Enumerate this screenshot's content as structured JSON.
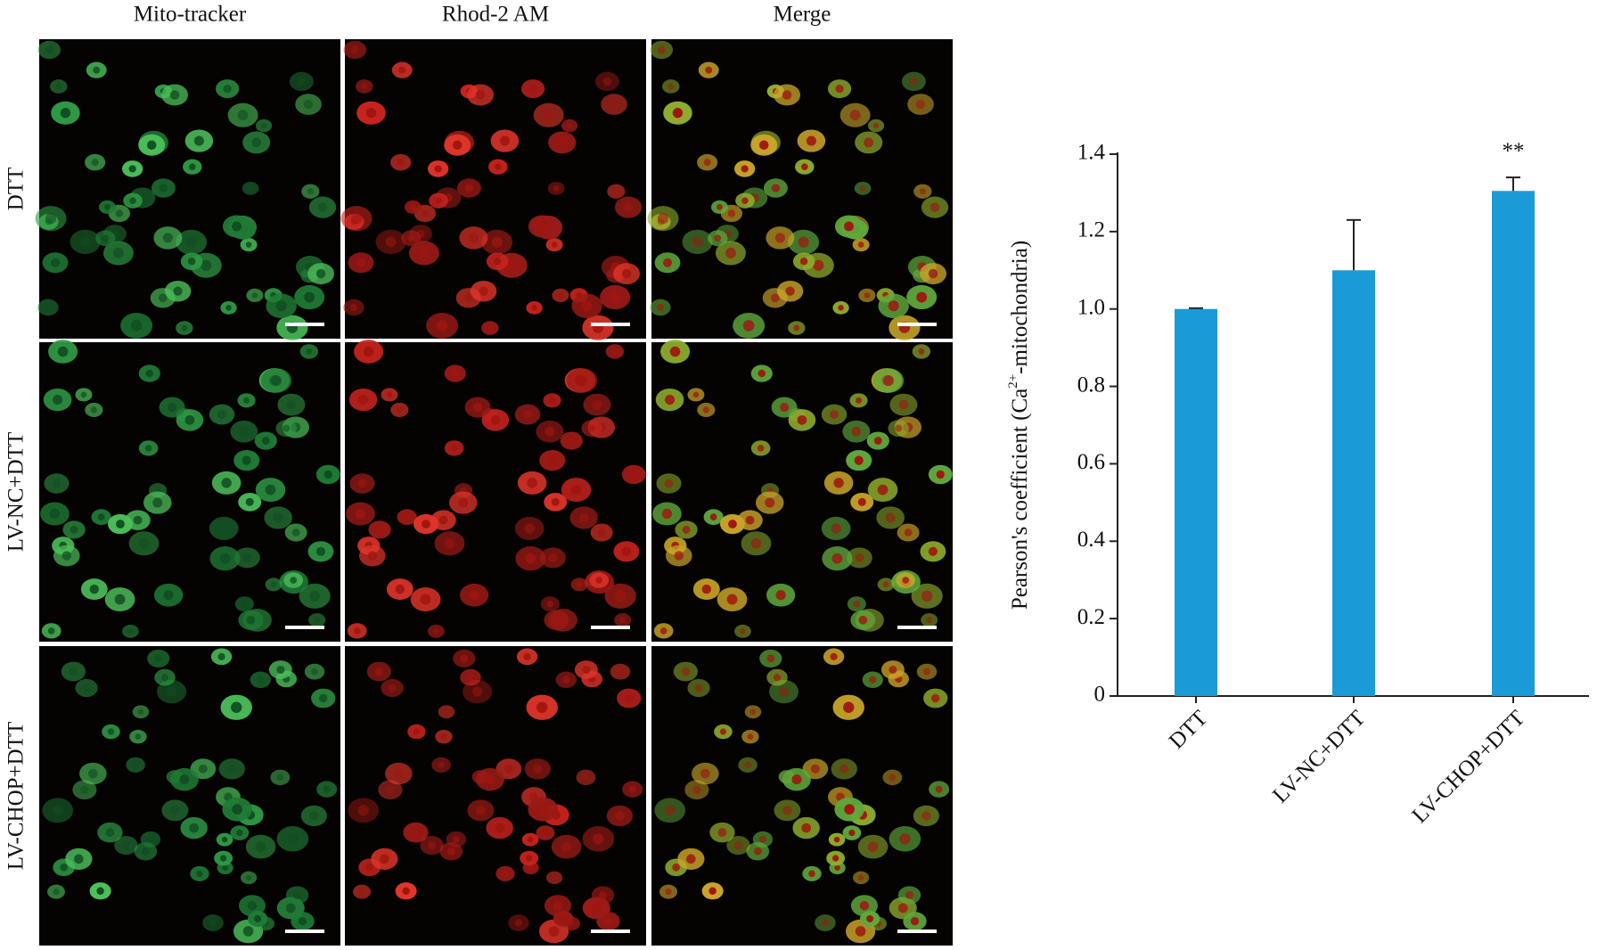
{
  "columns": [
    "Mito-tracker",
    "Rhod-2 AM",
    "Merge"
  ],
  "rows": [
    "DTT",
    "LV-NC+DTT",
    "LV-CHOP+DTT"
  ],
  "chart_data": {
    "type": "bar",
    "categories": [
      "DTT",
      "LV-NC+DTT",
      "LV-CHOP+DTT"
    ],
    "values": [
      1.0,
      1.1,
      1.305
    ],
    "errors": [
      0.002,
      0.13,
      0.035
    ],
    "color": "#1a9bd7",
    "y_label": [
      "Pearson's coefficient (Ca",
      "2+",
      "-mitochondria)"
    ],
    "annotations": [
      {
        "category": 2,
        "text": "**"
      }
    ],
    "ylim": [
      0,
      1.4
    ],
    "yticks": [
      0,
      0.2,
      0.4,
      0.6,
      0.8,
      {
        "value": 1,
        "label": "1.0"
      },
      1.2,
      1.4
    ]
  }
}
